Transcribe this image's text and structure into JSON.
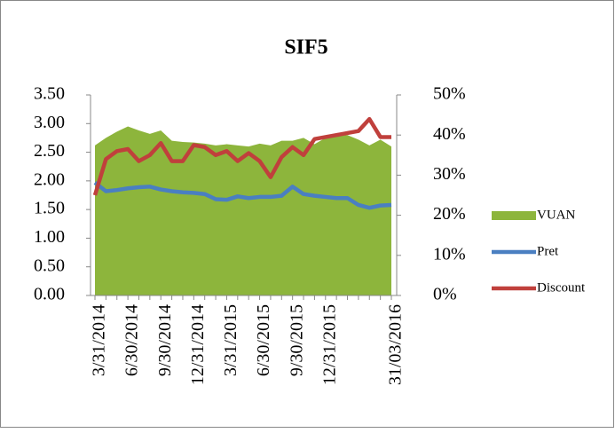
{
  "chart_data": {
    "type": "area-line",
    "title": "SIF5",
    "categories": [
      "3/31/2014",
      null,
      null,
      "6/30/2014",
      null,
      null,
      "9/30/2014",
      null,
      null,
      "12/31/2014",
      null,
      null,
      "3/31/2015",
      null,
      null,
      "6/30/2015",
      null,
      null,
      "9/30/2015",
      null,
      null,
      "12/31/2015",
      null,
      null,
      null,
      null,
      null,
      "31/03/2016"
    ],
    "series": [
      {
        "name": "VUAN",
        "color": "#8db53c",
        "kind": "area",
        "values": [
          2.62,
          2.75,
          2.86,
          2.95,
          2.88,
          2.82,
          2.88,
          2.7,
          2.68,
          2.67,
          2.65,
          2.62,
          2.64,
          2.62,
          2.6,
          2.65,
          2.62,
          2.7,
          2.7,
          2.75,
          2.64,
          2.75,
          2.78,
          2.8,
          2.72,
          2.62,
          2.72,
          2.6
        ]
      },
      {
        "name": "Pret",
        "color": "#4a7fc1",
        "kind": "line",
        "values": [
          1.97,
          1.82,
          1.84,
          1.87,
          1.89,
          1.9,
          1.85,
          1.82,
          1.8,
          1.79,
          1.77,
          1.68,
          1.67,
          1.73,
          1.7,
          1.72,
          1.72,
          1.74,
          1.9,
          1.77,
          1.74,
          1.72,
          1.7,
          1.7,
          1.58,
          1.53,
          1.57,
          1.58
        ]
      },
      {
        "name": "Discount",
        "color": "#c0403c",
        "kind": "line",
        "axis": "y2",
        "values": [
          25,
          34,
          36,
          36.5,
          33.5,
          35,
          38,
          33.5,
          33.5,
          37.5,
          37,
          35,
          36,
          33.5,
          35.5,
          33.5,
          29.5,
          34.5,
          37,
          35,
          39,
          39.5,
          40,
          40.5,
          41,
          44,
          39.5,
          39.5
        ]
      }
    ],
    "ylim": [
      0,
      3.5
    ],
    "yticks": [
      {
        "value": 0,
        "label": "0.00"
      },
      {
        "value": 0.5,
        "label": "0.50"
      },
      {
        "value": 1,
        "label": "1.00"
      },
      {
        "value": 1.5,
        "label": "1.50"
      },
      {
        "value": 2,
        "label": "2.00"
      },
      {
        "value": 2.5,
        "label": "2.50"
      },
      {
        "value": 3,
        "label": "3.00"
      },
      {
        "value": 3.5,
        "label": "3.50"
      }
    ],
    "y2lim": [
      0,
      50
    ],
    "y2ticks": [
      {
        "value": 0,
        "label": "0%"
      },
      {
        "value": 10,
        "label": "10%"
      },
      {
        "value": 20,
        "label": "20%"
      },
      {
        "value": 30,
        "label": "30%"
      },
      {
        "value": 40,
        "label": "40%"
      },
      {
        "value": 50,
        "label": "50%"
      }
    ],
    "legend": "right"
  }
}
